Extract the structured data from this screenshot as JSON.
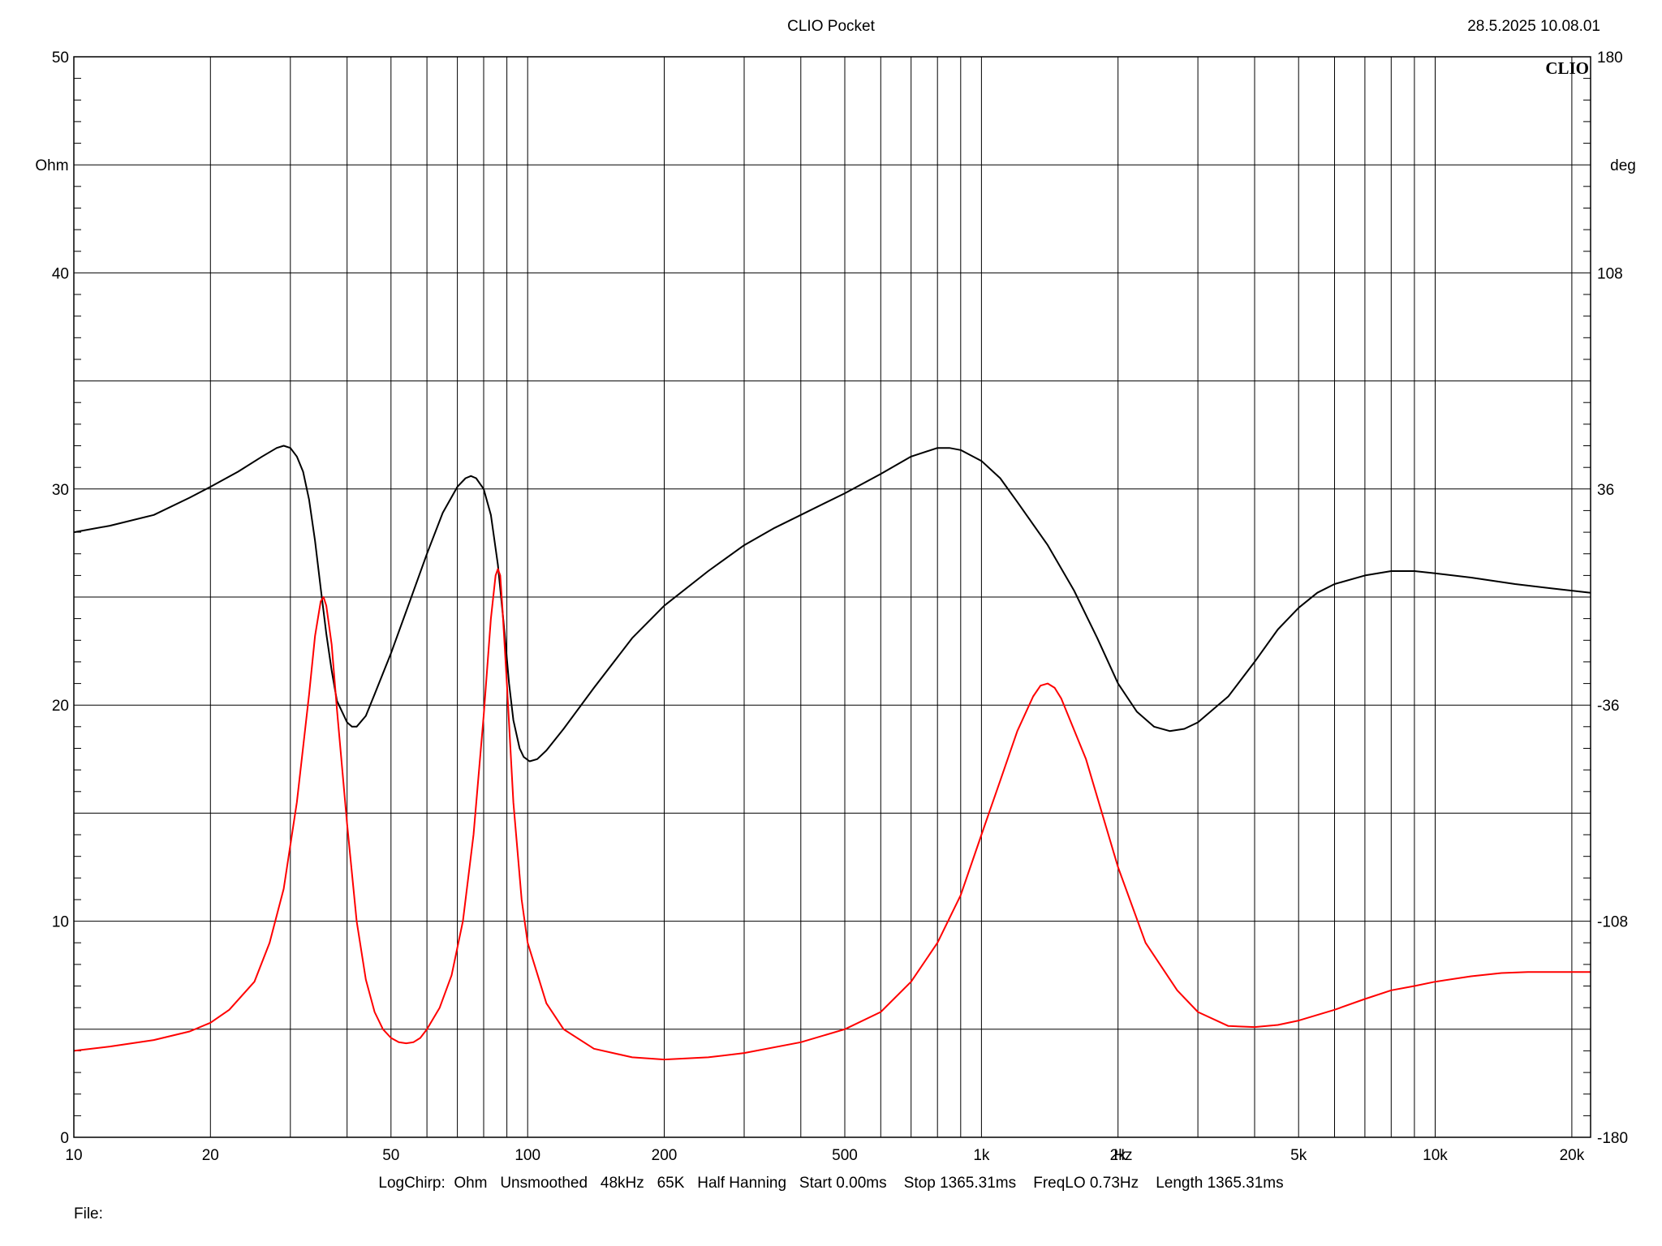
{
  "header": {
    "title": "CLIO Pocket",
    "timestamp": "28.5.2025 10.08.01",
    "brand": "CLIO"
  },
  "footer": {
    "settings": "LogChirp:  Ohm   Unsmoothed   48kHz   65K   Half Hanning   Start 0.00ms    Stop 1365.31ms    FreqLO 0.73Hz    Length 1365.31ms",
    "file_label": "File:"
  },
  "colors": {
    "magnitude": "#000000",
    "phase": "#ff0000",
    "grid": "#000000"
  },
  "chart_data": {
    "type": "line",
    "title": "CLIO Pocket",
    "x_scale": "log",
    "xlim": [
      10,
      22000
    ],
    "x_unit_label": "Hz",
    "x_ticks": [
      {
        "value": 10,
        "label": "10"
      },
      {
        "value": 20,
        "label": "20"
      },
      {
        "value": 50,
        "label": "50"
      },
      {
        "value": 100,
        "label": "100"
      },
      {
        "value": 200,
        "label": "200"
      },
      {
        "value": 500,
        "label": "500"
      },
      {
        "value": 1000,
        "label": "1k"
      },
      {
        "value": 2000,
        "label": "2k"
      },
      {
        "value": 5000,
        "label": "5k"
      },
      {
        "value": 10000,
        "label": "10k"
      },
      {
        "value": 20000,
        "label": "20k"
      }
    ],
    "ylim": [
      0,
      50
    ],
    "ylabel": "Ohm",
    "y_ticks": [
      {
        "value": 0,
        "label": "0"
      },
      {
        "value": 10,
        "label": "10"
      },
      {
        "value": 20,
        "label": "20"
      },
      {
        "value": 30,
        "label": "30"
      },
      {
        "value": 40,
        "label": "40"
      },
      {
        "value": 50,
        "label": "50"
      }
    ],
    "y2lim": [
      -180,
      180
    ],
    "y2label": "deg",
    "y2_ticks": [
      {
        "value": -180,
        "label": "-180"
      },
      {
        "value": -108,
        "label": "-108"
      },
      {
        "value": -36,
        "label": "-36"
      },
      {
        "value": 36,
        "label": "36"
      },
      {
        "value": 108,
        "label": "108"
      },
      {
        "value": 180,
        "label": "180"
      }
    ],
    "grid": true,
    "series": [
      {
        "key": "black",
        "axis": "left",
        "points": [
          [
            10,
            28.0
          ],
          [
            12,
            28.3
          ],
          [
            15,
            28.8
          ],
          [
            18,
            29.6
          ],
          [
            20,
            30.1
          ],
          [
            23,
            30.8
          ],
          [
            26,
            31.5
          ],
          [
            28,
            31.9
          ],
          [
            29,
            32.0
          ],
          [
            30,
            31.9
          ],
          [
            31,
            31.5
          ],
          [
            32,
            30.8
          ],
          [
            33,
            29.5
          ],
          [
            34,
            27.6
          ],
          [
            35,
            25.4
          ],
          [
            36,
            23.3
          ],
          [
            37,
            21.6
          ],
          [
            38,
            20.2
          ],
          [
            40,
            19.2
          ],
          [
            41,
            19.0
          ],
          [
            42,
            19.0
          ],
          [
            44,
            19.5
          ],
          [
            46,
            20.5
          ],
          [
            50,
            22.4
          ],
          [
            55,
            24.8
          ],
          [
            60,
            27.0
          ],
          [
            65,
            28.9
          ],
          [
            70,
            30.1
          ],
          [
            73,
            30.5
          ],
          [
            75,
            30.6
          ],
          [
            77,
            30.5
          ],
          [
            80,
            30.0
          ],
          [
            83,
            28.8
          ],
          [
            86,
            26.5
          ],
          [
            89,
            23.3
          ],
          [
            91,
            21.0
          ],
          [
            93,
            19.3
          ],
          [
            96,
            18.0
          ],
          [
            98,
            17.6
          ],
          [
            101,
            17.4
          ],
          [
            105,
            17.5
          ],
          [
            110,
            17.9
          ],
          [
            120,
            18.9
          ],
          [
            140,
            20.8
          ],
          [
            170,
            23.1
          ],
          [
            200,
            24.6
          ],
          [
            250,
            26.2
          ],
          [
            300,
            27.4
          ],
          [
            350,
            28.2
          ],
          [
            400,
            28.8
          ],
          [
            500,
            29.8
          ],
          [
            600,
            30.7
          ],
          [
            700,
            31.5
          ],
          [
            800,
            31.9
          ],
          [
            850,
            31.9
          ],
          [
            900,
            31.8
          ],
          [
            1000,
            31.3
          ],
          [
            1100,
            30.5
          ],
          [
            1200,
            29.4
          ],
          [
            1400,
            27.4
          ],
          [
            1600,
            25.3
          ],
          [
            1800,
            23.1
          ],
          [
            2000,
            21.0
          ],
          [
            2200,
            19.7
          ],
          [
            2400,
            19.0
          ],
          [
            2600,
            18.8
          ],
          [
            2800,
            18.9
          ],
          [
            3000,
            19.2
          ],
          [
            3500,
            20.4
          ],
          [
            4000,
            22.0
          ],
          [
            4500,
            23.5
          ],
          [
            5000,
            24.5
          ],
          [
            5500,
            25.2
          ],
          [
            6000,
            25.6
          ],
          [
            7000,
            26.0
          ],
          [
            8000,
            26.2
          ],
          [
            9000,
            26.2
          ],
          [
            10000,
            26.1
          ],
          [
            12000,
            25.9
          ],
          [
            15000,
            25.6
          ],
          [
            18000,
            25.4
          ],
          [
            22000,
            25.2
          ]
        ]
      },
      {
        "key": "red",
        "axis": "left",
        "points": [
          [
            10,
            4.0
          ],
          [
            12,
            4.2
          ],
          [
            15,
            4.5
          ],
          [
            18,
            4.9
          ],
          [
            20,
            5.3
          ],
          [
            22,
            5.9
          ],
          [
            25,
            7.2
          ],
          [
            27,
            9.0
          ],
          [
            29,
            11.5
          ],
          [
            31,
            15.5
          ],
          [
            33,
            20.5
          ],
          [
            34,
            23.2
          ],
          [
            35,
            24.8
          ],
          [
            35.5,
            25.0
          ],
          [
            36,
            24.6
          ],
          [
            37,
            22.8
          ],
          [
            38,
            19.8
          ],
          [
            40,
            14.5
          ],
          [
            42,
            10.0
          ],
          [
            44,
            7.3
          ],
          [
            46,
            5.8
          ],
          [
            48,
            5.0
          ],
          [
            50,
            4.6
          ],
          [
            52,
            4.4
          ],
          [
            54,
            4.35
          ],
          [
            56,
            4.4
          ],
          [
            58,
            4.6
          ],
          [
            60,
            5.0
          ],
          [
            64,
            6.0
          ],
          [
            68,
            7.5
          ],
          [
            72,
            10.0
          ],
          [
            76,
            14.0
          ],
          [
            80,
            19.5
          ],
          [
            83,
            24.0
          ],
          [
            85,
            26.0
          ],
          [
            86,
            26.3
          ],
          [
            87,
            26.0
          ],
          [
            88,
            24.5
          ],
          [
            90,
            21.0
          ],
          [
            93,
            15.5
          ],
          [
            97,
            11.0
          ],
          [
            100,
            9.0
          ],
          [
            110,
            6.2
          ],
          [
            120,
            5.0
          ],
          [
            140,
            4.1
          ],
          [
            170,
            3.7
          ],
          [
            200,
            3.6
          ],
          [
            250,
            3.7
          ],
          [
            300,
            3.9
          ],
          [
            400,
            4.4
          ],
          [
            500,
            5.0
          ],
          [
            600,
            5.8
          ],
          [
            700,
            7.2
          ],
          [
            800,
            9.0
          ],
          [
            900,
            11.2
          ],
          [
            1000,
            14.0
          ],
          [
            1100,
            16.5
          ],
          [
            1200,
            18.8
          ],
          [
            1300,
            20.4
          ],
          [
            1350,
            20.9
          ],
          [
            1400,
            21.0
          ],
          [
            1450,
            20.8
          ],
          [
            1500,
            20.3
          ],
          [
            1700,
            17.5
          ],
          [
            2000,
            12.5
          ],
          [
            2300,
            9.0
          ],
          [
            2700,
            6.8
          ],
          [
            3000,
            5.8
          ],
          [
            3500,
            5.15
          ],
          [
            4000,
            5.1
          ],
          [
            4500,
            5.2
          ],
          [
            5000,
            5.4
          ],
          [
            6000,
            5.9
          ],
          [
            7000,
            6.4
          ],
          [
            8000,
            6.8
          ],
          [
            9000,
            7.0
          ],
          [
            10000,
            7.2
          ],
          [
            12000,
            7.45
          ],
          [
            14000,
            7.6
          ],
          [
            16000,
            7.65
          ],
          [
            18000,
            7.65
          ],
          [
            22000,
            7.65
          ]
        ]
      }
    ]
  }
}
